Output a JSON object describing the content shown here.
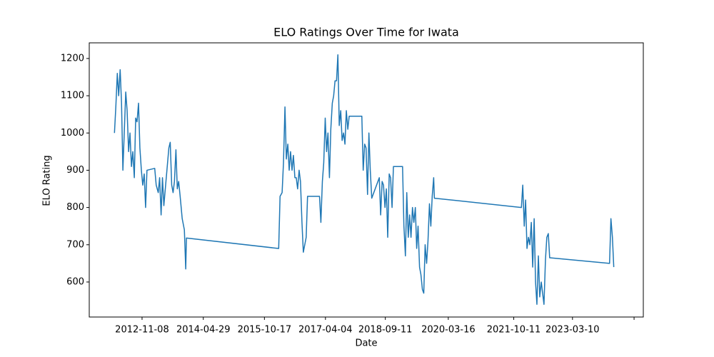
{
  "chart_data": {
    "type": "line",
    "title": "ELO Ratings Over Time for Iwata",
    "xlabel": "Date",
    "ylabel": "ELO Rating",
    "x": [
      "2012-03-11",
      "2012-03-23",
      "2012-04-05",
      "2012-04-17",
      "2012-04-30",
      "2012-05-12",
      "2012-05-24",
      "2012-06-06",
      "2012-06-18",
      "2012-06-30",
      "2012-07-13",
      "2012-07-25",
      "2012-08-07",
      "2012-08-19",
      "2012-09-01",
      "2012-09-13",
      "2012-09-25",
      "2012-10-08",
      "2012-10-20",
      "2012-11-02",
      "2012-11-14",
      "2012-11-27",
      "2012-12-09",
      "2012-12-21",
      "2013-02-27",
      "2013-03-12",
      "2013-03-30",
      "2013-04-11",
      "2013-04-24",
      "2013-05-06",
      "2013-05-18",
      "2013-07-01",
      "2013-07-13",
      "2013-07-26",
      "2013-08-07",
      "2013-08-19",
      "2013-09-01",
      "2013-09-13",
      "2013-09-25",
      "2013-10-08",
      "2013-10-26",
      "2013-11-14",
      "2013-11-26",
      "2013-12-02",
      "2016-02-19",
      "2016-03-02",
      "2016-03-20",
      "2016-04-01",
      "2016-04-14",
      "2016-04-26",
      "2016-05-09",
      "2016-05-21",
      "2016-06-02",
      "2016-06-15",
      "2016-06-27",
      "2016-07-10",
      "2016-07-22",
      "2016-08-03",
      "2016-08-16",
      "2016-08-28",
      "2016-09-10",
      "2016-09-22",
      "2016-10-17",
      "2016-10-29",
      "2017-02-11",
      "2017-02-23",
      "2017-03-08",
      "2017-03-20",
      "2017-04-02",
      "2017-04-14",
      "2017-04-26",
      "2017-05-09",
      "2017-05-21",
      "2017-06-03",
      "2017-06-15",
      "2017-06-27",
      "2017-07-10",
      "2017-07-22",
      "2017-08-03",
      "2017-08-16",
      "2017-08-28",
      "2017-09-10",
      "2017-09-22",
      "2017-10-04",
      "2017-10-17",
      "2017-10-29",
      "2018-02-17",
      "2018-03-01",
      "2018-03-14",
      "2018-03-26",
      "2018-04-08",
      "2018-04-20",
      "2018-05-02",
      "2018-05-15",
      "2018-07-20",
      "2018-08-01",
      "2018-08-14",
      "2018-08-26",
      "2018-09-08",
      "2018-09-20",
      "2018-10-02",
      "2018-10-15",
      "2018-10-27",
      "2018-11-09",
      "2018-11-21",
      "2019-02-09",
      "2019-02-21",
      "2019-03-06",
      "2019-03-18",
      "2019-03-31",
      "2019-04-12",
      "2019-04-24",
      "2019-05-07",
      "2019-05-19",
      "2019-06-01",
      "2019-06-13",
      "2019-06-25",
      "2019-07-08",
      "2019-07-20",
      "2019-08-02",
      "2019-08-14",
      "2019-08-26",
      "2019-09-08",
      "2019-09-20",
      "2019-10-03",
      "2019-10-15",
      "2019-10-27",
      "2019-11-09",
      "2019-11-15",
      "2021-12-17",
      "2021-12-29",
      "2022-01-11",
      "2022-01-23",
      "2022-02-04",
      "2022-02-17",
      "2022-03-01",
      "2022-03-14",
      "2022-03-26",
      "2022-04-08",
      "2022-04-20",
      "2022-05-02",
      "2022-05-15",
      "2022-05-27",
      "2022-06-09",
      "2022-06-21",
      "2022-07-03",
      "2022-07-16",
      "2022-07-28",
      "2022-08-10",
      "2022-08-22",
      "2024-01-29",
      "2024-02-10",
      "2024-02-23",
      "2024-03-06"
    ],
    "series": [
      {
        "name": "Iwata",
        "color": "#1f77b4",
        "values": [
          1000,
          1070,
          1160,
          1100,
          1170,
          1080,
          900,
          1010,
          1110,
          1060,
          950,
          1000,
          910,
          950,
          880,
          1040,
          1030,
          1080,
          960,
          900,
          860,
          890,
          800,
          900,
          905,
          860,
          840,
          880,
          780,
          880,
          805,
          960,
          975,
          860,
          840,
          870,
          955,
          850,
          870,
          830,
          770,
          740,
          635,
          718,
          690,
          830,
          840,
          920,
          1070,
          930,
          970,
          900,
          950,
          900,
          940,
          880,
          880,
          850,
          900,
          870,
          760,
          680,
          720,
          830,
          830,
          760,
          870,
          920,
          1040,
          950,
          1000,
          880,
          1010,
          1080,
          1100,
          1140,
          1140,
          1210,
          1020,
          1060,
          980,
          1000,
          970,
          1060,
          1010,
          1045,
          1045,
          900,
          970,
          960,
          835,
          1000,
          900,
          825,
          880,
          780,
          870,
          860,
          800,
          850,
          720,
          890,
          880,
          800,
          910,
          910,
          750,
          670,
          840,
          720,
          780,
          720,
          800,
          760,
          800,
          690,
          750,
          640,
          620,
          580,
          570,
          700,
          650,
          710,
          810,
          750,
          830,
          880,
          825,
          800,
          860,
          750,
          820,
          690,
          720,
          700,
          760,
          640,
          770,
          600,
          540,
          670,
          560,
          600,
          570,
          540,
          660,
          720,
          730,
          665,
          650,
          770,
          720,
          640
        ]
      }
    ],
    "xlim": [
      "2011-08-03",
      "2024-11-20"
    ],
    "xticks": [
      "2012-11-08",
      "2014-04-29",
      "2015-10-17",
      "2017-04-04",
      "2018-09-11",
      "2020-03-16",
      "2021-10-11",
      "2023-03-10",
      {
        "value": "2024-08-31",
        "label": null
      }
    ],
    "ylim": [
      506,
      1242
    ],
    "yticks": [
      600,
      700,
      800,
      900,
      1000,
      1100,
      1200
    ]
  }
}
